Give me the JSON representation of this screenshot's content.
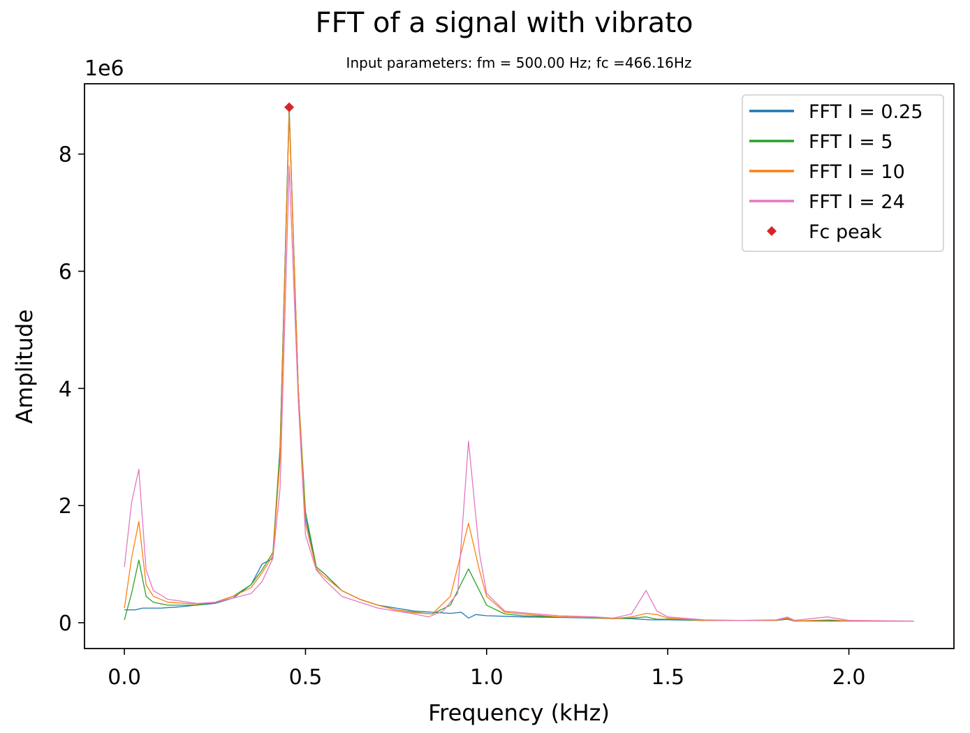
{
  "chart_data": {
    "type": "line",
    "title": "FFT of a signal with vibrato",
    "subtitle": "Input parameters:  fm = 500.00 Hz;  fc =466.16Hz",
    "xlabel": "Frequency (kHz)",
    "ylabel": "Amplitude",
    "y_offset_label": "1e6",
    "xlim": [
      -0.11,
      2.29
    ],
    "ylim": [
      -0.44,
      9.2
    ],
    "xticks": [
      0.0,
      0.5,
      1.0,
      1.5,
      2.0
    ],
    "xtick_labels": [
      "0.0",
      "0.5",
      "1.0",
      "1.5",
      "2.0"
    ],
    "yticks": [
      0,
      2,
      4,
      6,
      8
    ],
    "ytick_labels": [
      "0",
      "2",
      "4",
      "6",
      "8"
    ],
    "grid": false,
    "legend_position": "top-right",
    "series": [
      {
        "name": "FFT I = 0.25",
        "color": "#1f77b4",
        "points": [
          [
            0.0,
            0.22
          ],
          [
            0.03,
            0.22
          ],
          [
            0.05,
            0.25
          ],
          [
            0.1,
            0.25
          ],
          [
            0.15,
            0.27
          ],
          [
            0.2,
            0.3
          ],
          [
            0.25,
            0.33
          ],
          [
            0.3,
            0.42
          ],
          [
            0.35,
            0.65
          ],
          [
            0.38,
            1.0
          ],
          [
            0.41,
            1.1
          ],
          [
            0.43,
            3.0
          ],
          [
            0.455,
            8.8
          ],
          [
            0.48,
            4.0
          ],
          [
            0.5,
            1.8
          ],
          [
            0.53,
            0.95
          ],
          [
            0.55,
            0.85
          ],
          [
            0.6,
            0.55
          ],
          [
            0.65,
            0.4
          ],
          [
            0.7,
            0.3
          ],
          [
            0.75,
            0.25
          ],
          [
            0.8,
            0.2
          ],
          [
            0.85,
            0.18
          ],
          [
            0.9,
            0.16
          ],
          [
            0.93,
            0.18
          ],
          [
            0.95,
            0.08
          ],
          [
            0.97,
            0.14
          ],
          [
            1.0,
            0.12
          ],
          [
            1.1,
            0.1
          ],
          [
            1.2,
            0.09
          ],
          [
            1.3,
            0.08
          ],
          [
            1.4,
            0.07
          ],
          [
            1.45,
            0.05
          ],
          [
            1.5,
            0.05
          ],
          [
            1.6,
            0.04
          ],
          [
            1.7,
            0.04
          ],
          [
            1.8,
            0.04
          ],
          [
            1.83,
            0.06
          ],
          [
            1.85,
            0.03
          ],
          [
            1.9,
            0.03
          ],
          [
            2.0,
            0.03
          ],
          [
            2.1,
            0.03
          ],
          [
            2.18,
            0.03
          ]
        ]
      },
      {
        "name": "FFT I = 5",
        "color": "#2ca02c",
        "points": [
          [
            0.0,
            0.05
          ],
          [
            0.02,
            0.5
          ],
          [
            0.04,
            1.07
          ],
          [
            0.06,
            0.45
          ],
          [
            0.08,
            0.35
          ],
          [
            0.12,
            0.3
          ],
          [
            0.2,
            0.3
          ],
          [
            0.25,
            0.35
          ],
          [
            0.3,
            0.45
          ],
          [
            0.35,
            0.65
          ],
          [
            0.38,
            0.9
          ],
          [
            0.41,
            1.2
          ],
          [
            0.43,
            3.0
          ],
          [
            0.455,
            8.75
          ],
          [
            0.48,
            4.0
          ],
          [
            0.5,
            1.9
          ],
          [
            0.53,
            0.95
          ],
          [
            0.55,
            0.85
          ],
          [
            0.6,
            0.55
          ],
          [
            0.65,
            0.4
          ],
          [
            0.7,
            0.3
          ],
          [
            0.75,
            0.22
          ],
          [
            0.8,
            0.18
          ],
          [
            0.85,
            0.15
          ],
          [
            0.9,
            0.3
          ],
          [
            0.95,
            0.92
          ],
          [
            0.98,
            0.55
          ],
          [
            1.0,
            0.3
          ],
          [
            1.05,
            0.15
          ],
          [
            1.1,
            0.12
          ],
          [
            1.2,
            0.1
          ],
          [
            1.3,
            0.08
          ],
          [
            1.35,
            0.07
          ],
          [
            1.4,
            0.08
          ],
          [
            1.44,
            0.1
          ],
          [
            1.47,
            0.06
          ],
          [
            1.5,
            0.06
          ],
          [
            1.6,
            0.04
          ],
          [
            1.7,
            0.04
          ],
          [
            1.8,
            0.04
          ],
          [
            1.83,
            0.07
          ],
          [
            1.85,
            0.03
          ],
          [
            1.95,
            0.04
          ],
          [
            2.0,
            0.03
          ],
          [
            2.18,
            0.03
          ]
        ]
      },
      {
        "name": "FFT I = 10",
        "color": "#ff7f0e",
        "points": [
          [
            0.0,
            0.25
          ],
          [
            0.02,
            1.1
          ],
          [
            0.04,
            1.73
          ],
          [
            0.06,
            0.65
          ],
          [
            0.08,
            0.45
          ],
          [
            0.12,
            0.35
          ],
          [
            0.2,
            0.32
          ],
          [
            0.25,
            0.35
          ],
          [
            0.3,
            0.45
          ],
          [
            0.35,
            0.6
          ],
          [
            0.38,
            0.85
          ],
          [
            0.41,
            1.15
          ],
          [
            0.43,
            2.8
          ],
          [
            0.455,
            8.7
          ],
          [
            0.48,
            4.0
          ],
          [
            0.5,
            1.7
          ],
          [
            0.53,
            0.92
          ],
          [
            0.55,
            0.8
          ],
          [
            0.6,
            0.55
          ],
          [
            0.65,
            0.4
          ],
          [
            0.7,
            0.3
          ],
          [
            0.75,
            0.22
          ],
          [
            0.8,
            0.17
          ],
          [
            0.85,
            0.15
          ],
          [
            0.9,
            0.45
          ],
          [
            0.95,
            1.7
          ],
          [
            0.98,
            0.9
          ],
          [
            1.0,
            0.45
          ],
          [
            1.05,
            0.18
          ],
          [
            1.1,
            0.15
          ],
          [
            1.2,
            0.1
          ],
          [
            1.3,
            0.09
          ],
          [
            1.35,
            0.07
          ],
          [
            1.4,
            0.1
          ],
          [
            1.44,
            0.16
          ],
          [
            1.47,
            0.14
          ],
          [
            1.5,
            0.08
          ],
          [
            1.6,
            0.04
          ],
          [
            1.7,
            0.04
          ],
          [
            1.8,
            0.04
          ],
          [
            1.83,
            0.08
          ],
          [
            1.85,
            0.03
          ],
          [
            1.95,
            0.05
          ],
          [
            2.0,
            0.03
          ],
          [
            2.18,
            0.03
          ]
        ]
      },
      {
        "name": "FFT I = 24",
        "color": "#e377c2",
        "points": [
          [
            0.0,
            0.95
          ],
          [
            0.02,
            2.05
          ],
          [
            0.04,
            2.62
          ],
          [
            0.06,
            0.9
          ],
          [
            0.08,
            0.55
          ],
          [
            0.12,
            0.4
          ],
          [
            0.2,
            0.33
          ],
          [
            0.25,
            0.35
          ],
          [
            0.3,
            0.42
          ],
          [
            0.35,
            0.5
          ],
          [
            0.38,
            0.7
          ],
          [
            0.41,
            1.1
          ],
          [
            0.43,
            2.3
          ],
          [
            0.455,
            7.8
          ],
          [
            0.48,
            3.8
          ],
          [
            0.5,
            1.5
          ],
          [
            0.53,
            0.9
          ],
          [
            0.55,
            0.75
          ],
          [
            0.6,
            0.45
          ],
          [
            0.65,
            0.35
          ],
          [
            0.7,
            0.25
          ],
          [
            0.75,
            0.2
          ],
          [
            0.8,
            0.15
          ],
          [
            0.84,
            0.1
          ],
          [
            0.88,
            0.2
          ],
          [
            0.92,
            0.5
          ],
          [
            0.95,
            3.1
          ],
          [
            0.98,
            1.2
          ],
          [
            1.0,
            0.5
          ],
          [
            1.05,
            0.2
          ],
          [
            1.1,
            0.17
          ],
          [
            1.2,
            0.12
          ],
          [
            1.3,
            0.1
          ],
          [
            1.35,
            0.08
          ],
          [
            1.4,
            0.15
          ],
          [
            1.44,
            0.55
          ],
          [
            1.47,
            0.2
          ],
          [
            1.5,
            0.1
          ],
          [
            1.6,
            0.05
          ],
          [
            1.7,
            0.04
          ],
          [
            1.8,
            0.05
          ],
          [
            1.83,
            0.1
          ],
          [
            1.85,
            0.04
          ],
          [
            1.94,
            0.1
          ],
          [
            2.0,
            0.04
          ],
          [
            2.18,
            0.03
          ]
        ]
      }
    ],
    "markers": [
      {
        "name": "Fc peak",
        "color": "#d62728",
        "points": [
          [
            0.455,
            8.8
          ]
        ]
      }
    ]
  }
}
